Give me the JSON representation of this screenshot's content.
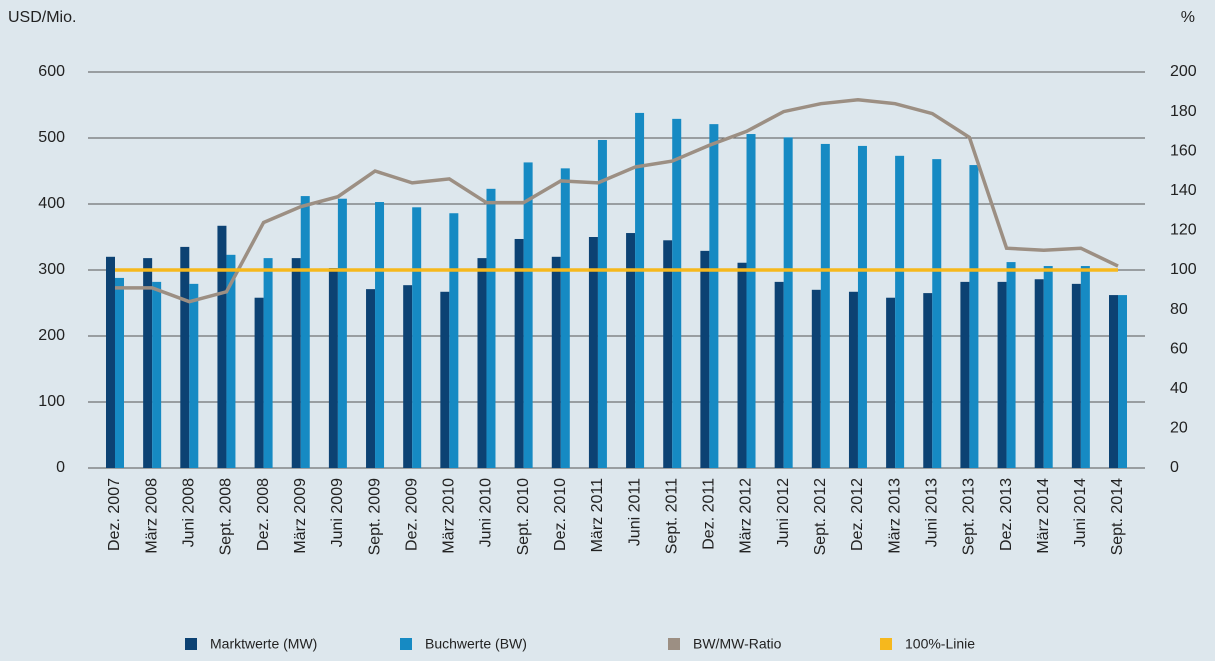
{
  "chart_data": {
    "type": "bar",
    "y_label": "USD/Mio.",
    "y2_label": "%",
    "categories": [
      "Dez. 2007",
      "März 2008",
      "Juni 2008",
      "Sept. 2008",
      "Dez. 2008",
      "März 2009",
      "Juni 2009",
      "Sept. 2009",
      "Dez. 2009",
      "März 2010",
      "Juni 2010",
      "Sept. 2010",
      "Dez. 2010",
      "März 2011",
      "Juni 2011",
      "Sept. 2011",
      "Dez. 2011",
      "März 2012",
      "Juni 2012",
      "Sept. 2012",
      "Dez. 2012",
      "März 2013",
      "Juni 2013",
      "Sept. 2013",
      "Dez. 2013",
      "März 2014",
      "Juni 2014",
      "Sept. 2014"
    ],
    "series": [
      {
        "name": "Marktwerte (MW)",
        "type": "bar",
        "color": "#0c4273",
        "values": [
          320,
          318,
          335,
          367,
          258,
          318,
          303,
          271,
          277,
          267,
          318,
          347,
          320,
          350,
          356,
          345,
          329,
          311,
          282,
          270,
          267,
          258,
          265,
          282,
          282,
          286,
          279,
          262
        ]
      },
      {
        "name": "Buchwerte (BW)",
        "type": "bar",
        "color": "#168ac3",
        "values": [
          288,
          282,
          279,
          323,
          318,
          412,
          408,
          403,
          395,
          386,
          423,
          463,
          454,
          497,
          538,
          529,
          521,
          506,
          501,
          491,
          488,
          473,
          468,
          459,
          312,
          306,
          306,
          262
        ]
      },
      {
        "name": "BW/MW-Ratio",
        "type": "line",
        "axis": "y2",
        "color": "#9c8f83",
        "values": [
          91,
          91,
          84,
          89,
          124,
          132,
          137,
          150,
          144,
          146,
          134,
          134,
          145,
          144,
          152,
          155,
          163,
          170,
          180,
          184,
          186,
          184,
          179,
          167,
          111,
          110,
          111,
          102
        ]
      },
      {
        "name": "100%-Linie",
        "type": "line",
        "axis": "y2",
        "color": "#f6b81d",
        "values": [
          100,
          100,
          100,
          100,
          100,
          100,
          100,
          100,
          100,
          100,
          100,
          100,
          100,
          100,
          100,
          100,
          100,
          100,
          100,
          100,
          100,
          100,
          100,
          100,
          100,
          100,
          100,
          100
        ]
      }
    ],
    "ylim": [
      0,
      600
    ],
    "yticks": [
      0,
      100,
      200,
      300,
      400,
      500,
      600
    ],
    "y2lim": [
      0,
      200
    ],
    "y2ticks": [
      0,
      20,
      40,
      60,
      80,
      100,
      120,
      140,
      160,
      180,
      200
    ],
    "grid": true
  }
}
